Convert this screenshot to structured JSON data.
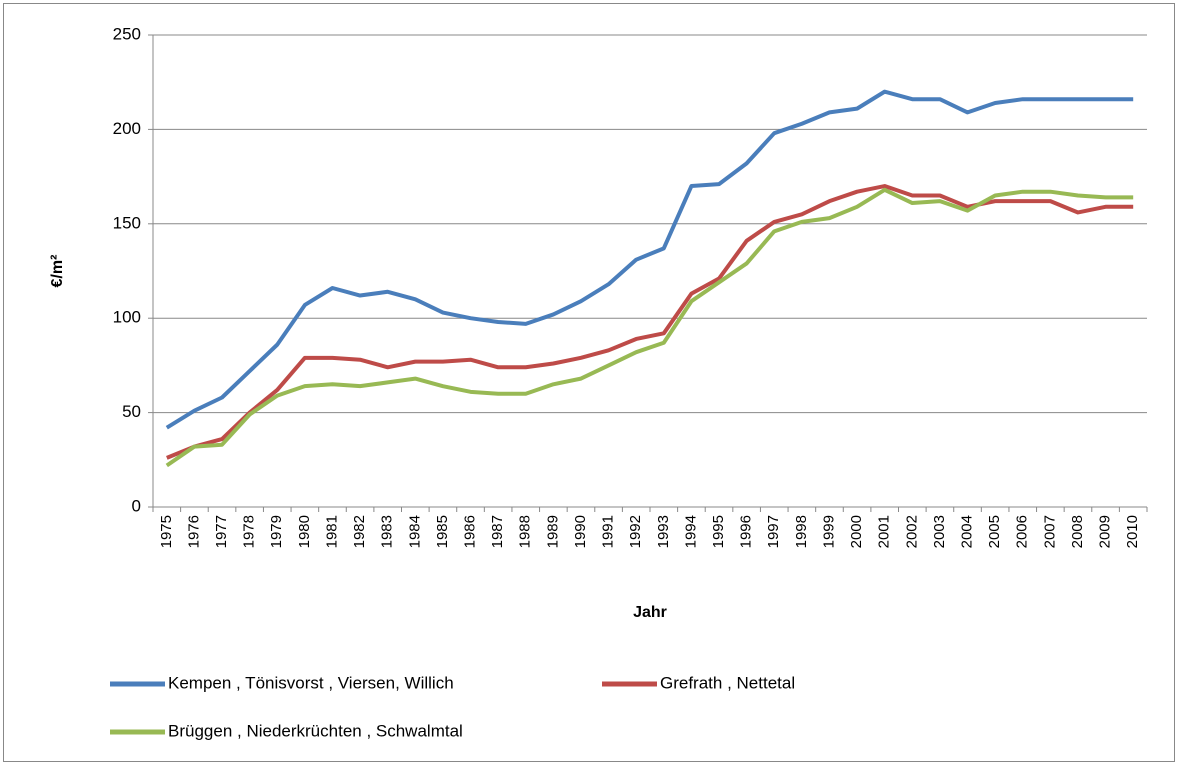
{
  "chart_data": {
    "type": "line",
    "x_label": "Jahr",
    "y_label": "€/m²",
    "x": [
      1975,
      1976,
      1977,
      1978,
      1979,
      1980,
      1981,
      1982,
      1983,
      1984,
      1985,
      1986,
      1987,
      1988,
      1989,
      1990,
      1991,
      1992,
      1993,
      1994,
      1995,
      1996,
      1997,
      1998,
      1999,
      2000,
      2001,
      2002,
      2003,
      2004,
      2005,
      2006,
      2007,
      2008,
      2009,
      2010
    ],
    "series": [
      {
        "name": "Kempen , Tönisvorst , Viersen, Willich",
        "color": "#4a7ebb",
        "values": [
          42,
          51,
          58,
          72,
          86,
          107,
          116,
          112,
          114,
          110,
          103,
          100,
          98,
          97,
          102,
          109,
          118,
          131,
          137,
          170,
          171,
          182,
          198,
          203,
          209,
          211,
          220,
          216,
          216,
          209,
          214,
          216,
          216,
          216,
          216,
          216
        ]
      },
      {
        "name": "Grefrath , Nettetal",
        "color": "#be4b48",
        "values": [
          26,
          32,
          36,
          50,
          62,
          79,
          79,
          78,
          74,
          77,
          77,
          78,
          74,
          74,
          76,
          79,
          83,
          89,
          92,
          113,
          121,
          141,
          151,
          155,
          162,
          167,
          170,
          165,
          165,
          159,
          162,
          162,
          162,
          156,
          159,
          159
        ]
      },
      {
        "name": "Brüggen , Niederkrüchten , Schwalmtal",
        "color": "#98b954",
        "values": [
          22,
          32,
          33,
          49,
          59,
          64,
          65,
          64,
          66,
          68,
          64,
          61,
          60,
          60,
          65,
          68,
          75,
          82,
          87,
          109,
          119,
          129,
          146,
          151,
          153,
          159,
          168,
          161,
          162,
          157,
          165,
          167,
          167,
          165,
          164,
          164
        ]
      }
    ],
    "ylim": [
      0,
      250
    ],
    "yticks": [
      0,
      50,
      100,
      150,
      200,
      250
    ],
    "grid": true
  }
}
